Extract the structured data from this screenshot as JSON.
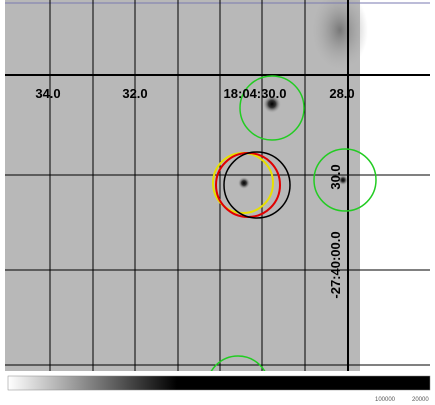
{
  "grid_labels": {
    "ra": [
      "34.0",
      "32.0",
      "18:04:30.0",
      "28.0"
    ],
    "dec": [
      "30.0",
      "-27:40:00.0"
    ]
  },
  "colorbar": {
    "labels": [
      "100000",
      "20000"
    ]
  }
}
